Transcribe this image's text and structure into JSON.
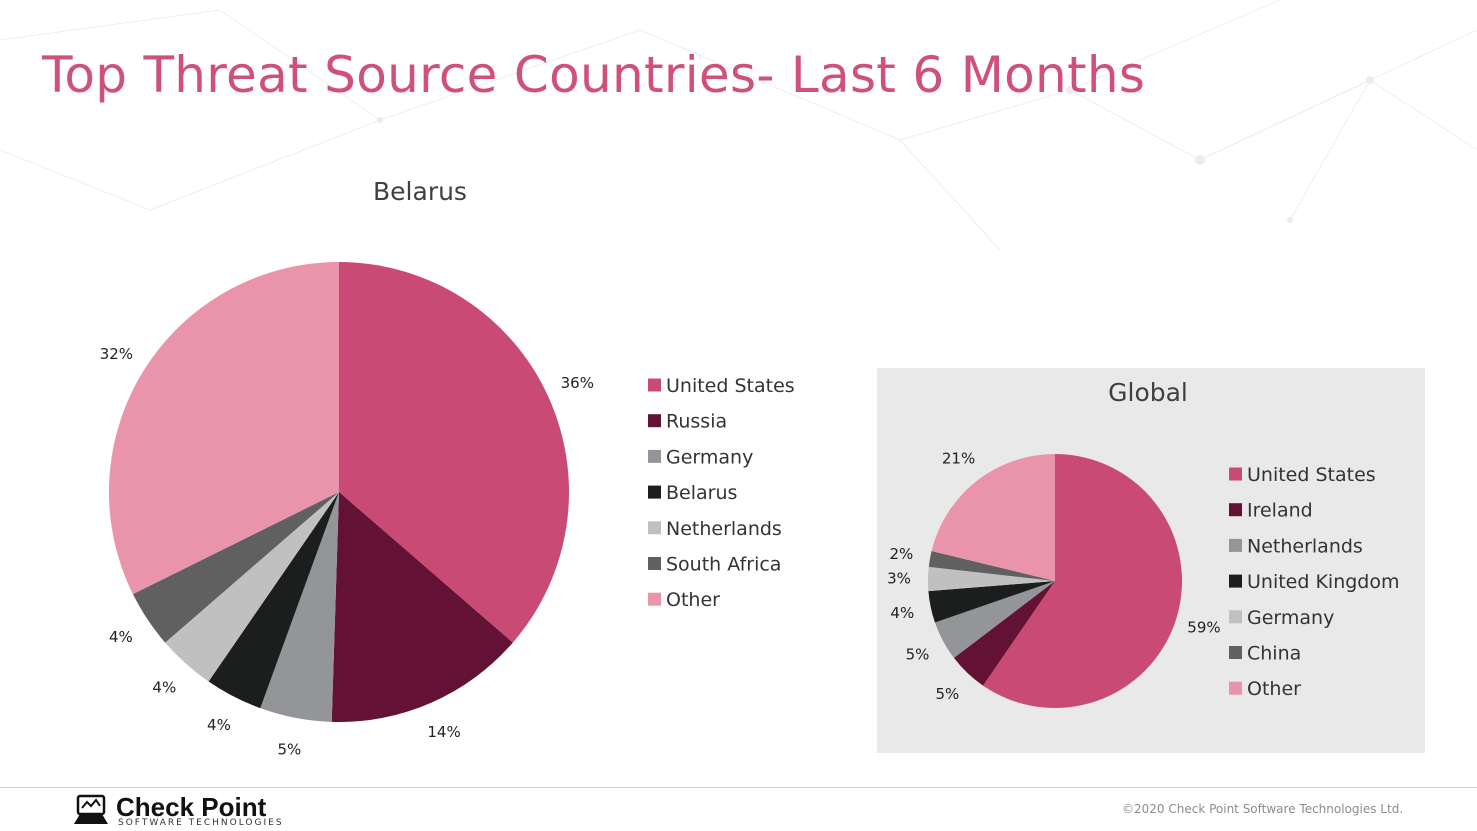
{
  "page": {
    "title": "Top Threat Source Countries- Last 6 Months"
  },
  "footer": {
    "logo_name": "Check Point",
    "logo_sub": "SOFTWARE TECHNOLOGIES",
    "copyright": "©2020 Check Point Software Technologies Ltd."
  },
  "chart_data": [
    {
      "type": "pie",
      "title": "Belarus",
      "categories": [
        "United States",
        "Russia",
        "Germany",
        "Belarus",
        "Netherlands",
        "South Africa",
        "Other"
      ],
      "values": [
        36,
        14,
        5,
        4,
        4,
        4,
        32
      ],
      "labels": [
        "36%",
        "14%",
        "5%",
        "4%",
        "4%",
        "4%",
        "32%"
      ],
      "colors": [
        "#c94a74",
        "#631235",
        "#939598",
        "#1c1d1d",
        "#c0c0c0",
        "#606060",
        "#ea94ab"
      ],
      "legend": "right"
    },
    {
      "type": "pie",
      "title": "Global",
      "categories": [
        "United States",
        "Ireland",
        "Netherlands",
        "United Kingdom",
        "Germany",
        "China",
        "Other"
      ],
      "values": [
        59,
        5,
        5,
        4,
        3,
        2,
        21
      ],
      "labels": [
        "59%",
        "5%",
        "5%",
        "4%",
        "3%",
        "2%",
        "21%"
      ],
      "colors": [
        "#c94a74",
        "#631235",
        "#939598",
        "#1c1d1d",
        "#c0c0c0",
        "#606060",
        "#ea94ab"
      ],
      "legend": "right",
      "background": "#e8e9e8"
    }
  ]
}
